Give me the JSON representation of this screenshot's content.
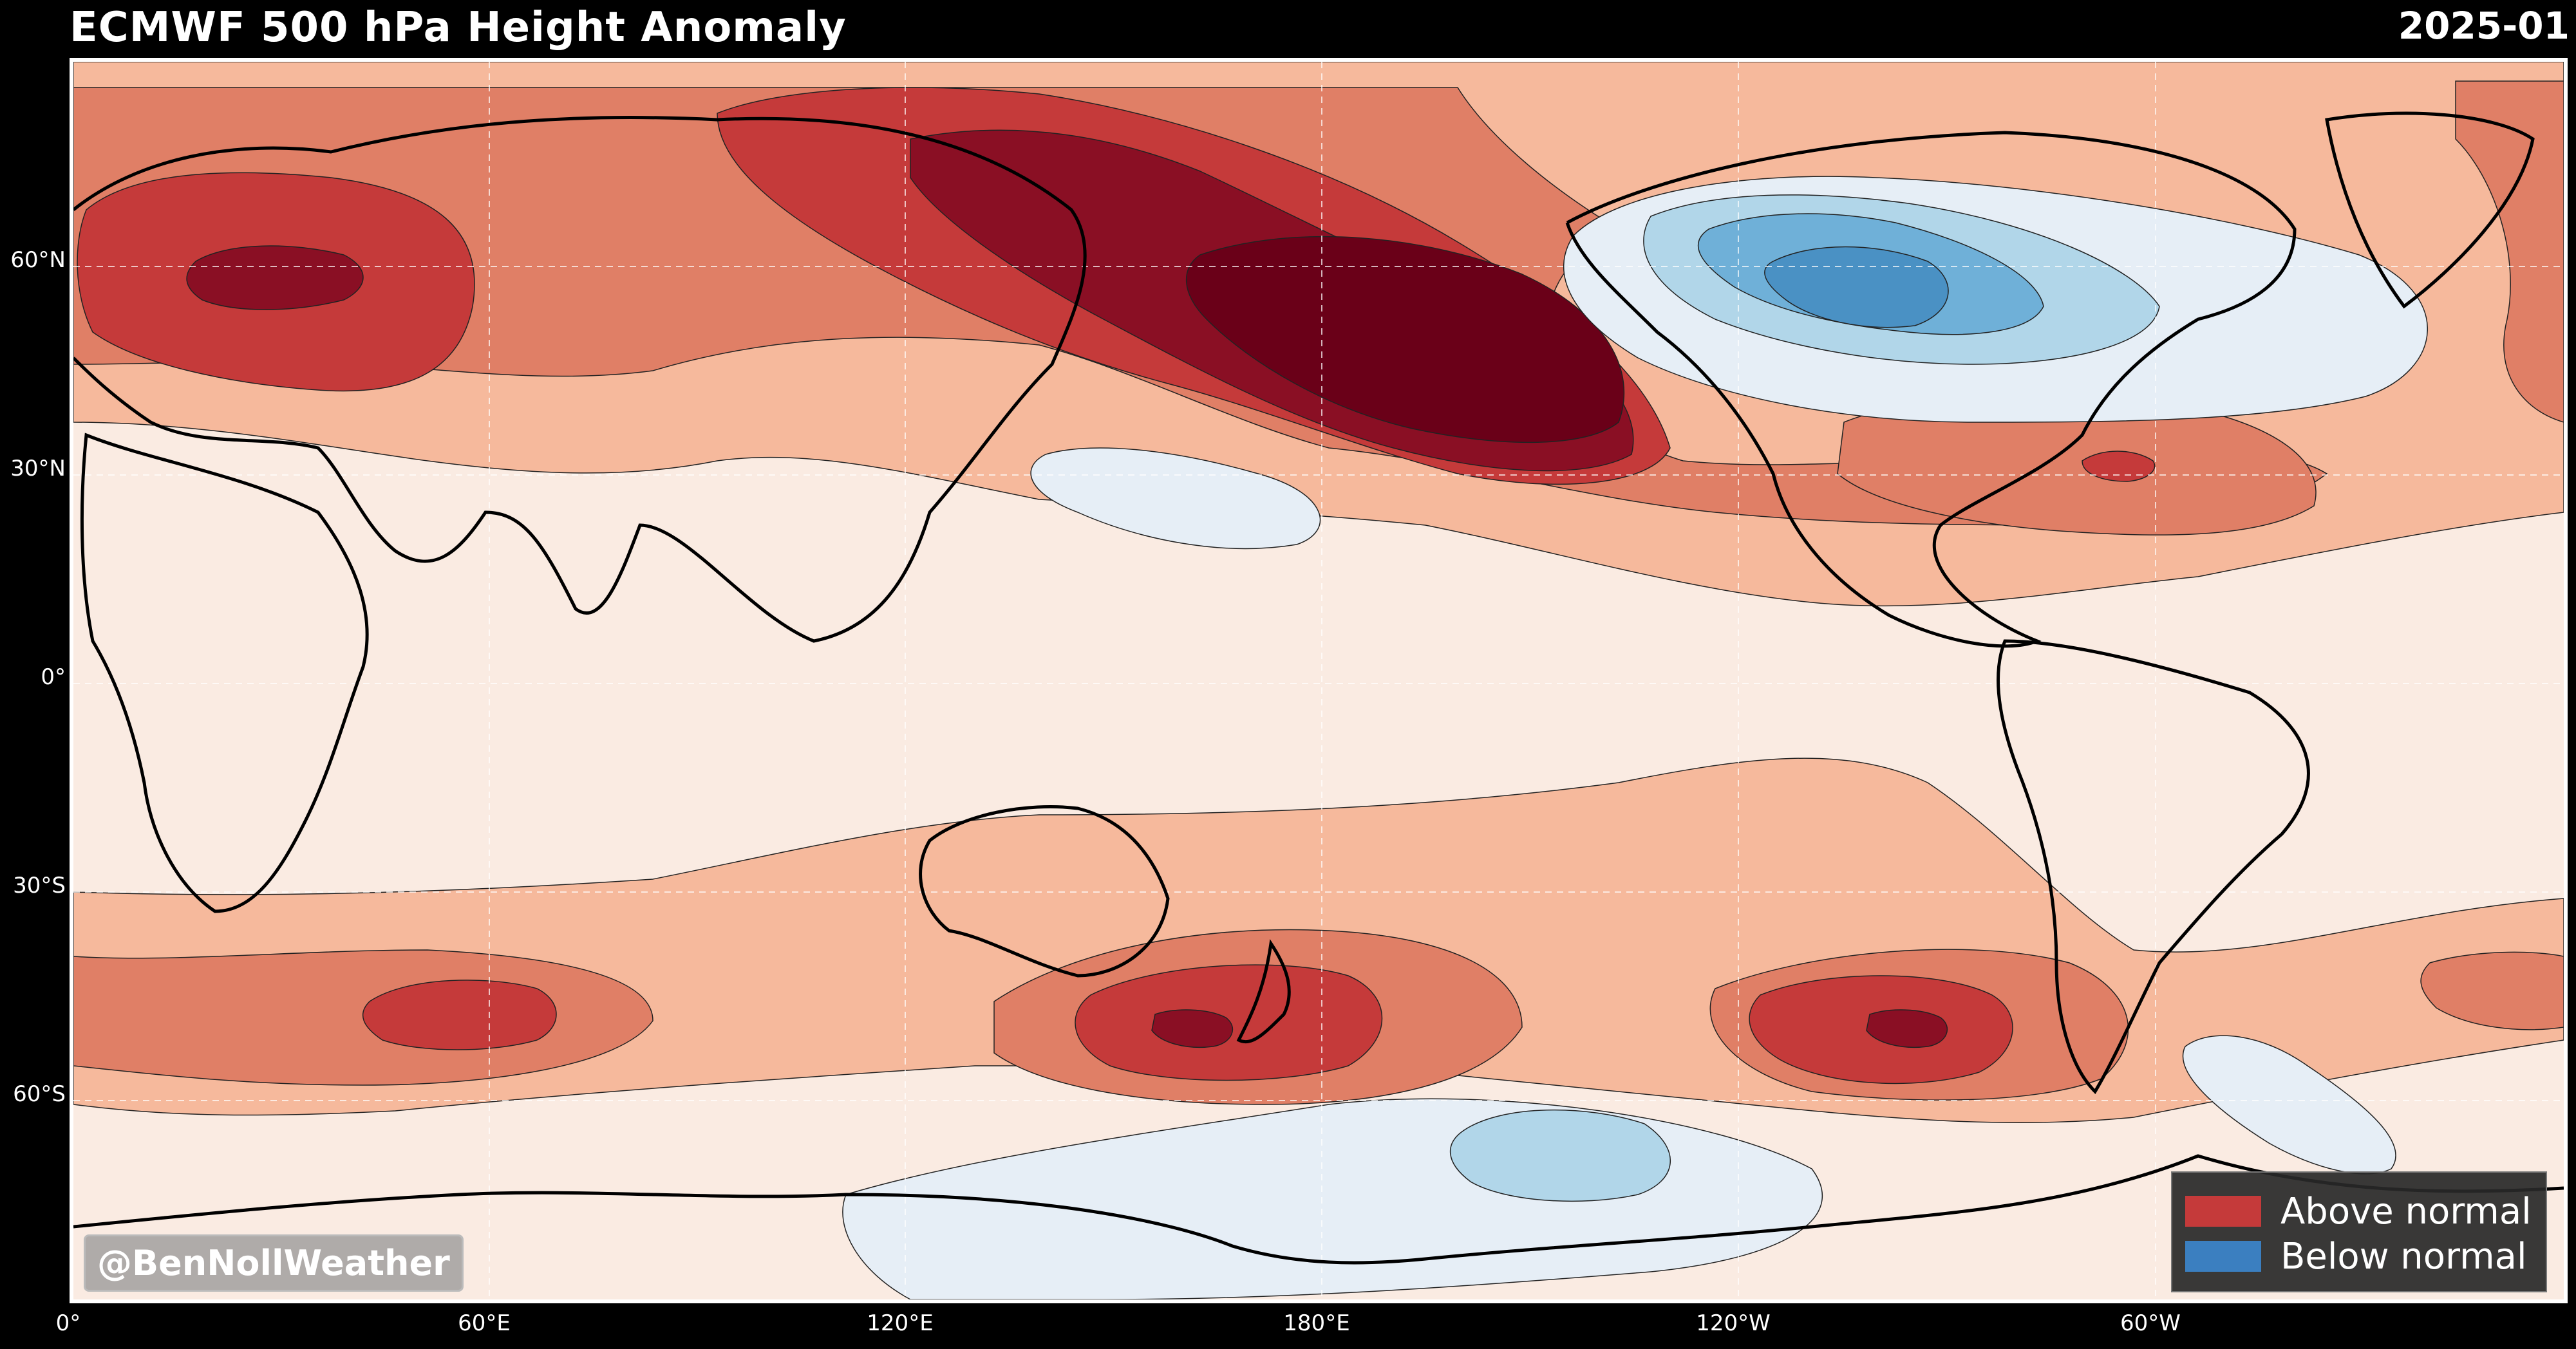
{
  "header": {
    "title": "ECMWF 500 hPa Height Anomaly",
    "date": "2025-01"
  },
  "axes": {
    "y_ticks": [
      "60°N",
      "30°N",
      "0°",
      "30°S",
      "60°S"
    ],
    "x_ticks": [
      "0°",
      "60°E",
      "120°E",
      "180°E",
      "120°W",
      "60°W"
    ]
  },
  "legend": {
    "items": [
      {
        "label": "Above normal",
        "color": "#c53a3a"
      },
      {
        "label": "Below normal",
        "color": "#3b7fc0"
      }
    ]
  },
  "watermark": "@BenNollWeather",
  "colors": {
    "neutral": "#faebe2",
    "pos1": "#f6b99c",
    "pos2": "#e07f66",
    "pos3": "#c53a3a",
    "pos4": "#8a0f24",
    "pos5": "#6a0018",
    "neg1": "#e6eef6",
    "neg2": "#b1d6e9",
    "neg3": "#6fb0d8",
    "neg4": "#4a91c4"
  }
}
